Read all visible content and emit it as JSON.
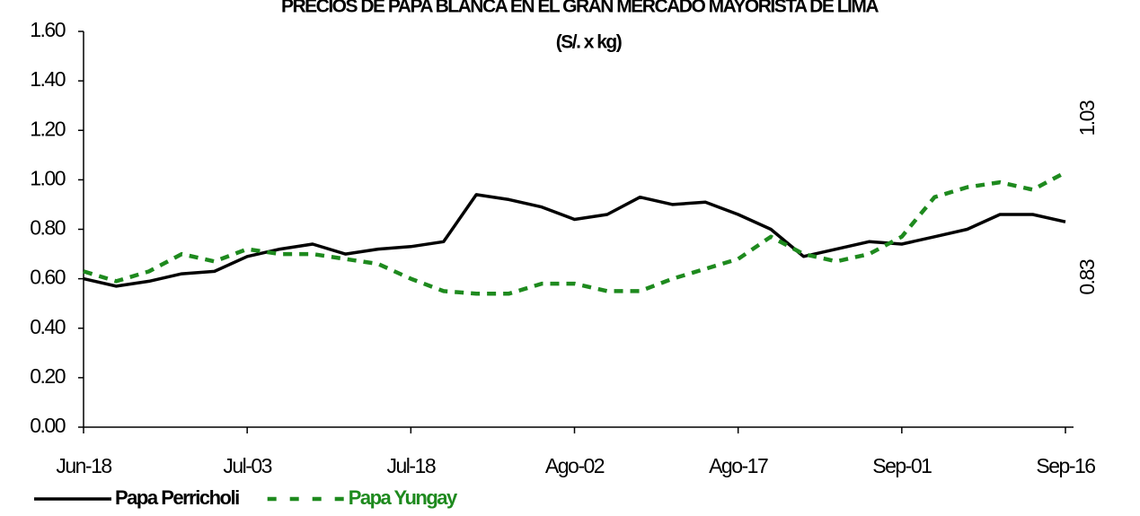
{
  "chart_data": {
    "type": "line",
    "title": "PRECIOS DE PAPA BLANCA EN EL GRAN MERCADO MAYORISTA DE LIMA",
    "subtitle": "(S/. x kg)",
    "categories": [
      "Jun-18",
      null,
      null,
      null,
      null,
      "Jul-03",
      null,
      null,
      null,
      null,
      "Jul-18",
      null,
      null,
      null,
      null,
      "Ago-02",
      null,
      null,
      null,
      null,
      "Ago-17",
      null,
      null,
      null,
      null,
      "Sep-01",
      null,
      null,
      null,
      null,
      "Sep-16"
    ],
    "series": [
      {
        "name": "Papa Perricholi",
        "color": "#000000",
        "dashed": false,
        "values": [
          0.6,
          0.57,
          0.59,
          0.62,
          0.63,
          0.69,
          0.72,
          0.74,
          0.7,
          0.72,
          0.73,
          0.75,
          0.94,
          0.92,
          0.89,
          0.84,
          0.86,
          0.93,
          0.9,
          0.91,
          0.86,
          0.8,
          0.69,
          0.72,
          0.75,
          0.74,
          0.77,
          0.8,
          0.86,
          0.86,
          0.83
        ]
      },
      {
        "name": "Papa Yungay",
        "color": "#1e8a1e",
        "dashed": true,
        "values": [
          0.63,
          0.59,
          0.63,
          0.7,
          0.67,
          0.72,
          0.7,
          0.7,
          0.68,
          0.66,
          0.6,
          0.55,
          0.54,
          0.54,
          0.58,
          0.58,
          0.55,
          0.55,
          0.6,
          0.64,
          0.68,
          0.77,
          0.7,
          0.67,
          0.7,
          0.77,
          0.93,
          0.97,
          0.99,
          0.96,
          1.03
        ]
      }
    ],
    "ylim": [
      0,
      1.6
    ],
    "yticks": [
      {
        "value": 0,
        "label": "0.00"
      },
      {
        "value": 0.2,
        "label": "0.20"
      },
      {
        "value": 0.4,
        "label": "0.40"
      },
      {
        "value": 0.6,
        "label": "0.60"
      },
      {
        "value": 0.8,
        "label": "0.80"
      },
      {
        "value": 1.0,
        "label": "1.00"
      },
      {
        "value": 1.2,
        "label": "1.20"
      },
      {
        "value": 1.4,
        "label": "1.40"
      },
      {
        "value": 1.6,
        "label": "1.60"
      }
    ],
    "grid": false,
    "legend": "bottom-left"
  }
}
